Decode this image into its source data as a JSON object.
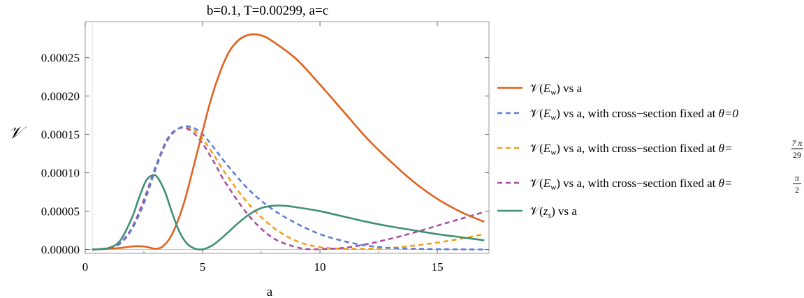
{
  "chart_data": {
    "type": "line",
    "title": "b=0.1, T=0.00299, a=c",
    "xlabel": "a",
    "ylabel": "𝒱",
    "xlim": [
      0,
      17.2
    ],
    "ylim": [
      -5e-06,
      0.000297
    ],
    "x_ticks": [
      "0",
      "5",
      "10",
      "15"
    ],
    "y_ticks": [
      "0.00000",
      "0.00005",
      "0.00010",
      "0.00015",
      "0.00020",
      "0.00025"
    ],
    "grid": false,
    "legend_position": "right",
    "series": [
      {
        "name": "𝒱(E_w) vs a",
        "style": "solid",
        "color": "#e1621d",
        "x": [
          0.3,
          1,
          1.5,
          2,
          2.5,
          2.8,
          3.0,
          3.3,
          3.7,
          4.2,
          4.8,
          5.4,
          6.0,
          6.5,
          7.0,
          7.5,
          8.0,
          9.0,
          10.0,
          11.0,
          12.0,
          13.0,
          14.0,
          15.0,
          16.0,
          17.0
        ],
        "y": [
          0,
          1e-06,
          2e-06,
          4e-06,
          4e-06,
          2e-06,
          1e-06,
          4e-06,
          2e-05,
          6e-05,
          0.00013,
          0.0002,
          0.00025,
          0.000272,
          0.00028,
          0.000279,
          0.000271,
          0.000248,
          0.000215,
          0.00018,
          0.000145,
          0.000115,
          8.8e-05,
          6.6e-05,
          4.9e-05,
          3.6e-05
        ]
      },
      {
        "name": "𝒱(E_w) vs a, with cross−section fixed at θ=0",
        "style": "dashed",
        "color": "#5c7fd0",
        "x": [
          0.3,
          1,
          1.5,
          2,
          2.5,
          3.0,
          3.5,
          4.0,
          4.5,
          5.0,
          5.5,
          6.0,
          7.0,
          8.0,
          9.0,
          10.0,
          11.0,
          12.0,
          13.0,
          14.0,
          15.0,
          16.0,
          17.0
        ],
        "y": [
          0,
          2e-06,
          8e-06,
          2.7e-05,
          6e-05,
          0.000105,
          0.000142,
          0.000158,
          0.00016,
          0.00015,
          0.000132,
          0.000112,
          7.7e-05,
          5.2e-05,
          3.4e-05,
          2e-05,
          1.1e-05,
          5e-06,
          2e-06,
          1e-06,
          5e-07,
          2e-07,
          0
        ]
      },
      {
        "name": "𝒱(E_w) vs a, with cross−section fixed at θ=7π/29",
        "style": "dashed",
        "color": "#f0a11a",
        "x": [
          0.3,
          1,
          1.5,
          2,
          2.5,
          3.0,
          3.5,
          4.0,
          4.5,
          5.0,
          5.5,
          6.0,
          7.0,
          8.0,
          9.0,
          10.0,
          11.0,
          12.0,
          13.0,
          14.0,
          15.0,
          16.0,
          17.0
        ],
        "y": [
          0,
          2e-06,
          8e-06,
          2.8e-05,
          6.2e-05,
          0.000106,
          0.000143,
          0.000158,
          0.000158,
          0.000144,
          0.000122,
          9.8e-05,
          5.8e-05,
          2.9e-05,
          1.1e-05,
          3e-06,
          1e-06,
          1e-06,
          2e-06,
          5e-06,
          9e-06,
          1.4e-05,
          2e-05
        ]
      },
      {
        "name": "𝒱(E_w) vs a, with cross−section fixed at θ=π/2",
        "style": "dashed",
        "color": "#a94ea5",
        "x": [
          0.3,
          1,
          1.5,
          2,
          2.5,
          3.0,
          3.5,
          4.0,
          4.5,
          5.0,
          5.5,
          6.0,
          7.0,
          8.0,
          9.0,
          9.5,
          10.0,
          11.0,
          12.0,
          13.0,
          14.0,
          15.0,
          16.0,
          17.0
        ],
        "y": [
          0,
          2e-06,
          9e-06,
          2.9e-05,
          6.5e-05,
          0.000108,
          0.000144,
          0.000158,
          0.000155,
          0.000138,
          0.000113,
          8.6e-05,
          4.3e-05,
          1.5e-05,
          3e-06,
          5e-07,
          5e-07,
          2e-06,
          7e-06,
          1.4e-05,
          2.2e-05,
          3.1e-05,
          4e-05,
          4.9e-05
        ]
      },
      {
        "name": "𝒱(z_s) vs a",
        "style": "solid",
        "color": "#3f8f76",
        "x": [
          0.3,
          1,
          1.5,
          2,
          2.3,
          2.6,
          2.9,
          3.1,
          3.4,
          3.7,
          4.0,
          4.3,
          4.6,
          4.9,
          5.2,
          5.5,
          6.0,
          6.5,
          7.0,
          7.5,
          8.0,
          8.5,
          9.0,
          10.0,
          11.0,
          12.0,
          13.0,
          14.0,
          15.0,
          16.0,
          17.0
        ],
        "y": [
          0,
          2e-06,
          1.2e-05,
          4.2e-05,
          6.8e-05,
          9e-05,
          9.7e-05,
          9.3e-05,
          7.5e-05,
          4.8e-05,
          2.4e-05,
          9e-06,
          2e-06,
          0,
          2e-06,
          7e-06,
          2e-05,
          3.4e-05,
          4.6e-05,
          5.4e-05,
          5.7e-05,
          5.7e-05,
          5.5e-05,
          5e-05,
          4.3e-05,
          3.6e-05,
          3e-05,
          2.5e-05,
          2e-05,
          1.6e-05,
          1.2e-05
        ]
      }
    ]
  },
  "legend": [
    {
      "head": "𝒱(",
      "var": "E",
      "sub": "w",
      "tail": ") vs a",
      "extra": ""
    },
    {
      "head": "𝒱(",
      "var": "E",
      "sub": "w",
      "tail": ") vs a, with cross−section fixed at ",
      "extra": "θ=0"
    },
    {
      "head": "𝒱(",
      "var": "E",
      "sub": "w",
      "tail": ") vs a, with cross−section fixed at ",
      "extra": "θ=",
      "num": "7 π",
      "den": "29"
    },
    {
      "head": "𝒱(",
      "var": "E",
      "sub": "w",
      "tail": ") vs a, with cross−section fixed at ",
      "extra": "θ=",
      "num": "π",
      "den": "2"
    },
    {
      "head": "𝒱(",
      "var": "z",
      "sub": "s",
      "tail": ") vs a",
      "extra": ""
    }
  ]
}
